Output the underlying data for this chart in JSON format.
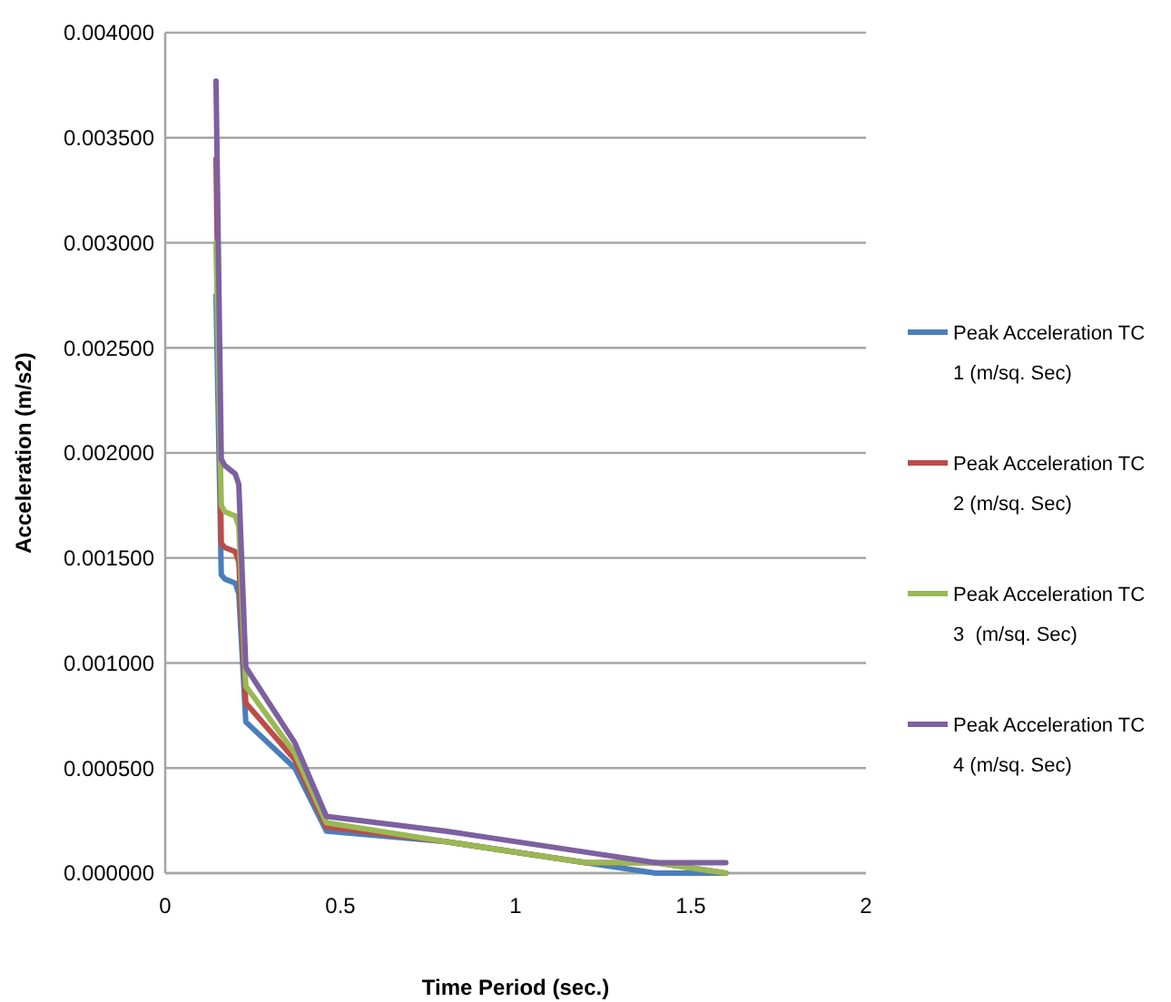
{
  "chart_data": {
    "type": "line",
    "xlabel": "Time Period (sec.)",
    "ylabel": "Acceleration (m/s2)",
    "x": [
      0.145,
      0.16,
      0.17,
      0.2,
      0.21,
      0.23,
      0.37,
      0.46,
      0.8,
      1.2,
      1.4,
      1.6
    ],
    "series": [
      {
        "name": "Peak Acceleration TC 1 (m/sq. Sec)",
        "color": "#4a7ebb",
        "values": [
          0.00275,
          0.00142,
          0.0014,
          0.00138,
          0.00133,
          0.00072,
          0.0005,
          0.0002,
          0.00015,
          5e-05,
          0,
          0
        ]
      },
      {
        "name": "Peak Acceleration TC 2 (m/sq. Sec)",
        "color": "#be4b48",
        "values": [
          0.0034,
          0.00157,
          0.00155,
          0.00153,
          0.00148,
          0.00081,
          0.00054,
          0.00022,
          0.00015,
          5e-05,
          5e-05,
          0
        ]
      },
      {
        "name": "Peak Acceleration TC 3  (m/sq. Sec)",
        "color": "#98b954",
        "values": [
          0.003,
          0.00175,
          0.00172,
          0.0017,
          0.00165,
          0.00089,
          0.00057,
          0.00024,
          0.00015,
          5e-05,
          5e-05,
          0
        ]
      },
      {
        "name": "Peak Acceleration TC 4 (m/sq. Sec)",
        "color": "#7d60a0",
        "values": [
          0.00377,
          0.00197,
          0.00194,
          0.0019,
          0.00185,
          0.00098,
          0.00062,
          0.00027,
          0.0002,
          0.0001,
          5e-05,
          5e-05
        ]
      }
    ],
    "xlim": [
      0,
      2
    ],
    "xticks": [
      0,
      0.5,
      1,
      1.5,
      2
    ],
    "ylim": [
      0,
      0.004
    ],
    "yticks": [
      {
        "value": 0,
        "label": "0.000000"
      },
      {
        "value": 0.0005,
        "label": "0.000500"
      },
      {
        "value": 0.001,
        "label": "0.001000"
      },
      {
        "value": 0.0015,
        "label": "0.001500"
      },
      {
        "value": 0.002,
        "label": "0.002000"
      },
      {
        "value": 0.0025,
        "label": "0.002500"
      },
      {
        "value": 0.003,
        "label": "0.003000"
      },
      {
        "value": 0.0035,
        "label": "0.003500"
      },
      {
        "value": 0.004,
        "label": "0.004000"
      }
    ],
    "grid": "y",
    "legend": "right",
    "marker": "none",
    "line_style": "solid"
  }
}
